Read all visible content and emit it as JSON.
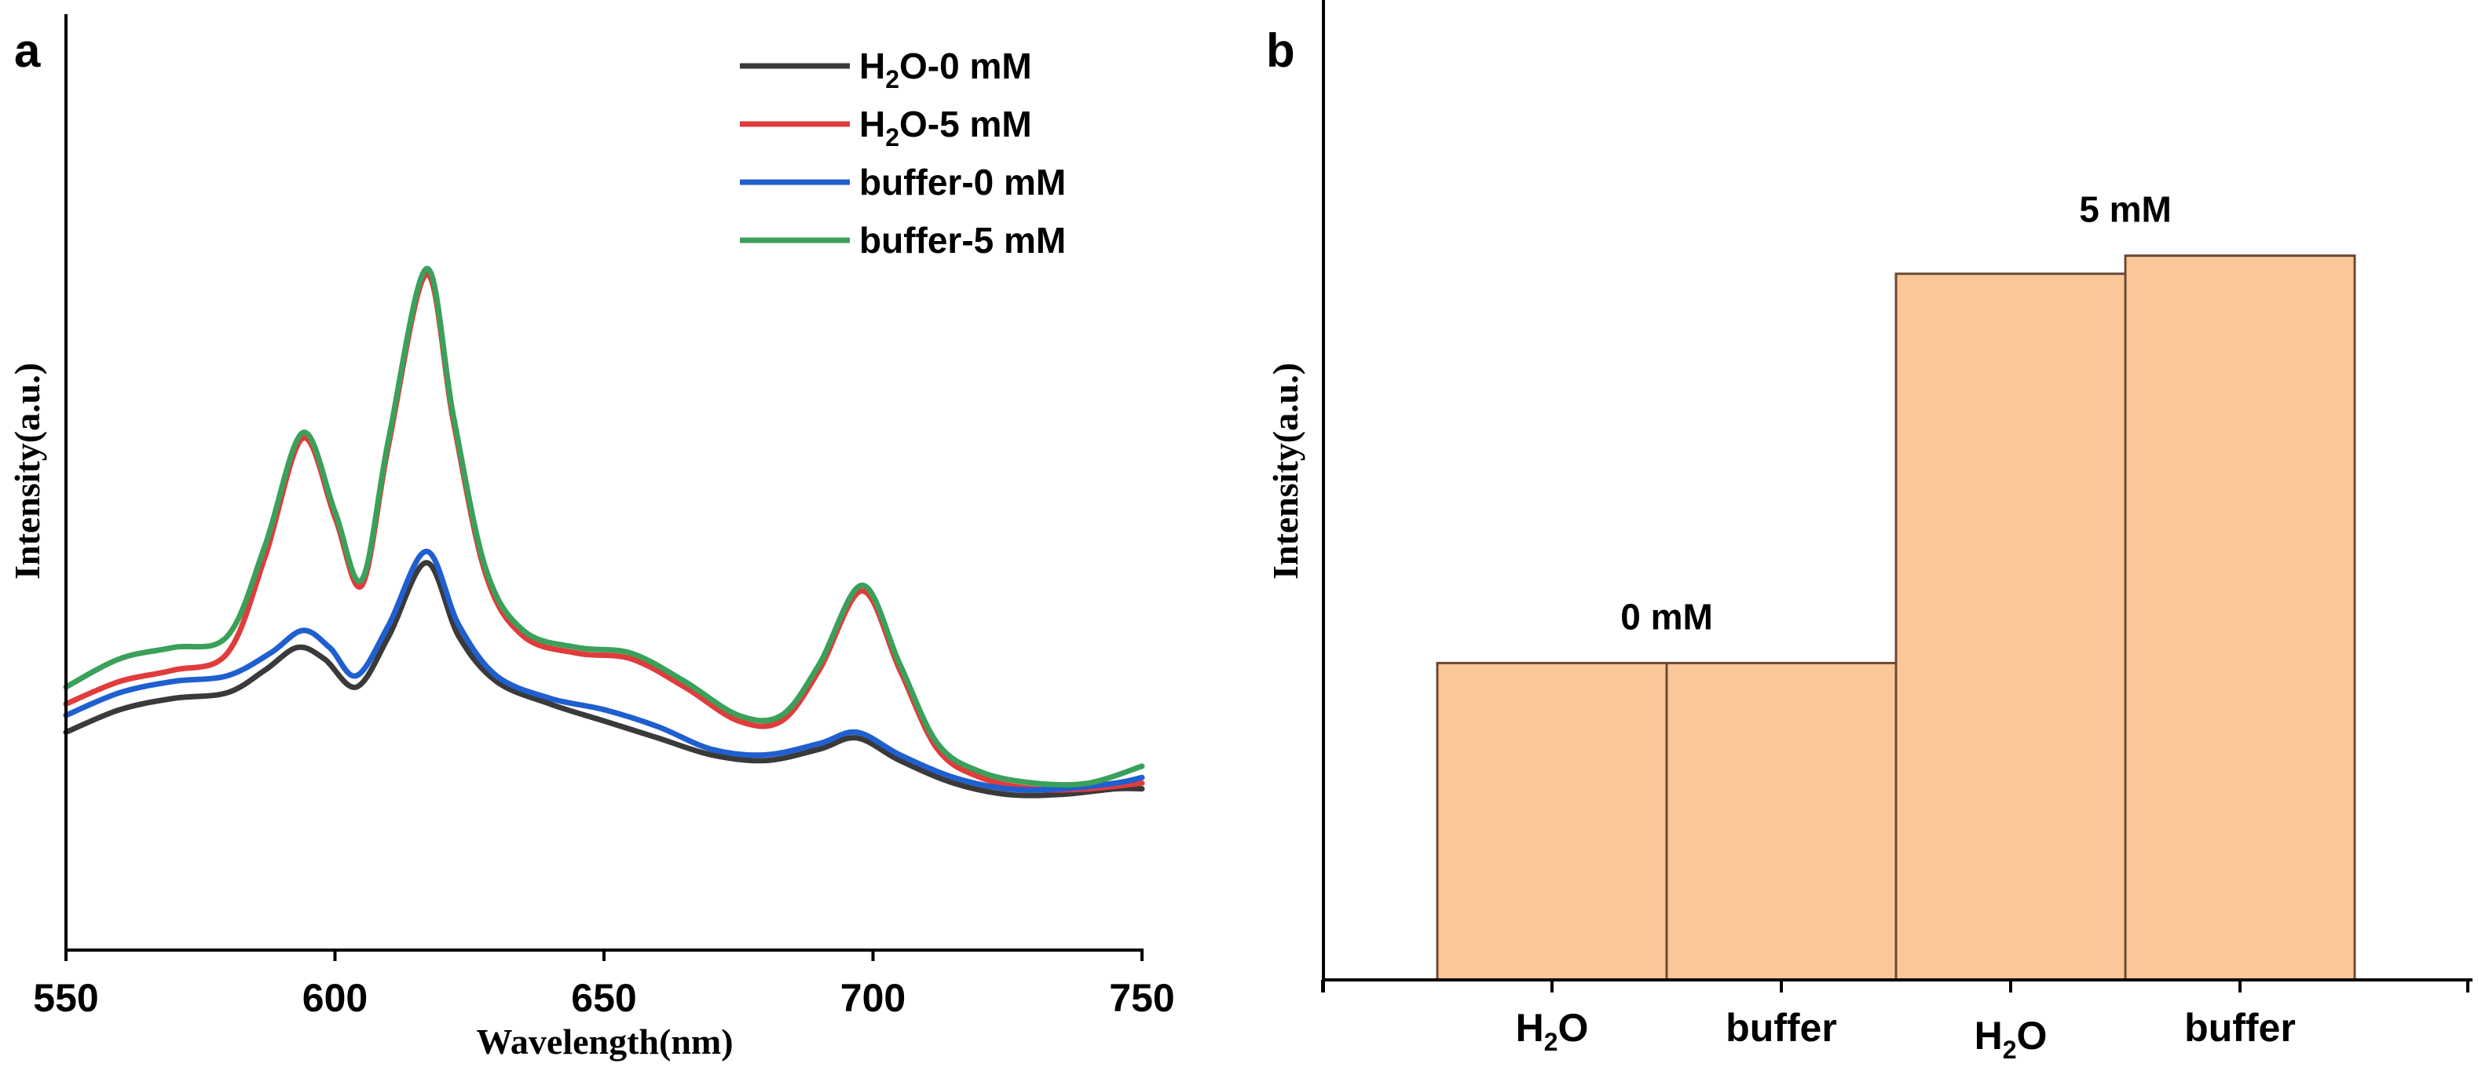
{
  "chart_data": [
    {
      "panel": "a",
      "type": "line",
      "title": "",
      "xlabel": "Wavelength(nm)",
      "ylabel": "Intensity(a.u.)",
      "xlim": [
        550,
        750
      ],
      "ylim": [
        0,
        100
      ],
      "xticks": [
        550,
        600,
        650,
        700,
        750
      ],
      "legend": {
        "placement": "top-right",
        "entries": [
          {
            "prefix": "H",
            "sub": "2",
            "suffix": "O-0 mM",
            "color": "#3a3a3a"
          },
          {
            "prefix": "H",
            "sub": "2",
            "suffix": "O-5 mM",
            "color": "#e03c3c"
          },
          {
            "prefix": "buffer-0 mM",
            "sub": "",
            "suffix": "",
            "color": "#1f5fcf"
          },
          {
            "prefix": "buffer-5 mM",
            "sub": "",
            "suffix": "",
            "color": "#3aa05a"
          }
        ]
      },
      "series": [
        {
          "name": "H2O-0 mM",
          "color": "#3a3a3a",
          "x": [
            550,
            560,
            570,
            580,
            587,
            593,
            598,
            604,
            610,
            617,
            623,
            630,
            640,
            650,
            660,
            670,
            680,
            690,
            697,
            705,
            715,
            725,
            735,
            745,
            750
          ],
          "y": [
            17,
            21,
            23,
            24,
            28,
            32,
            30,
            25,
            34,
            47,
            34,
            26,
            22,
            19,
            16,
            13,
            12,
            14,
            16,
            12,
            8,
            6,
            6,
            7,
            7
          ]
        },
        {
          "name": "H2O-5 mM",
          "color": "#e03c3c",
          "x": [
            550,
            560,
            570,
            580,
            587,
            594,
            600,
            605,
            610,
            617,
            622,
            628,
            635,
            645,
            655,
            665,
            675,
            683,
            690,
            698,
            705,
            712,
            720,
            730,
            740,
            750
          ],
          "y": [
            22,
            26,
            28,
            31,
            48,
            69,
            55,
            43,
            68,
            98,
            72,
            45,
            34,
            31,
            30,
            25,
            19,
            19,
            28,
            42,
            28,
            14,
            9,
            7,
            7,
            8
          ]
        },
        {
          "name": "buffer-0 mM",
          "color": "#1f5fcf",
          "x": [
            550,
            560,
            570,
            580,
            588,
            594,
            599,
            604,
            610,
            617,
            623,
            630,
            640,
            650,
            660,
            670,
            680,
            690,
            697,
            705,
            715,
            725,
            735,
            745,
            750
          ],
          "y": [
            20,
            24,
            26,
            27,
            31,
            35,
            32,
            27,
            36,
            49,
            36,
            27,
            23,
            21,
            18,
            14,
            13,
            15,
            17,
            13,
            9,
            7,
            7,
            8,
            9
          ]
        },
        {
          "name": "buffer-5 mM",
          "color": "#3aa05a",
          "x": [
            550,
            560,
            570,
            580,
            587,
            594,
            600,
            605,
            610,
            617,
            622,
            628,
            635,
            645,
            655,
            665,
            675,
            683,
            690,
            698,
            705,
            712,
            720,
            730,
            740,
            750
          ],
          "y": [
            25,
            30,
            32,
            34,
            50,
            70,
            56,
            44,
            69,
            99,
            73,
            46,
            35,
            32,
            31,
            26,
            20,
            20,
            29,
            43,
            29,
            15,
            10,
            8,
            8,
            11
          ]
        }
      ]
    },
    {
      "panel": "b",
      "type": "bar",
      "title": "",
      "xlabel": "",
      "ylabel": "Intensity(a.u.)",
      "ylim": [
        0,
        100
      ],
      "groups": [
        "0 mM",
        "5 mM"
      ],
      "categories": [
        {
          "prefix": "H",
          "sub": "2",
          "suffix": "O"
        },
        {
          "prefix": "buffer",
          "sub": "",
          "suffix": ""
        },
        {
          "prefix": "H",
          "sub": "2",
          "suffix": "O"
        },
        {
          "prefix": "buffer",
          "sub": "",
          "suffix": ""
        }
      ],
      "values": [
        35,
        35,
        78,
        80
      ],
      "bar_color": "#fac898",
      "bar_edge_color": "#6b4a35"
    }
  ]
}
